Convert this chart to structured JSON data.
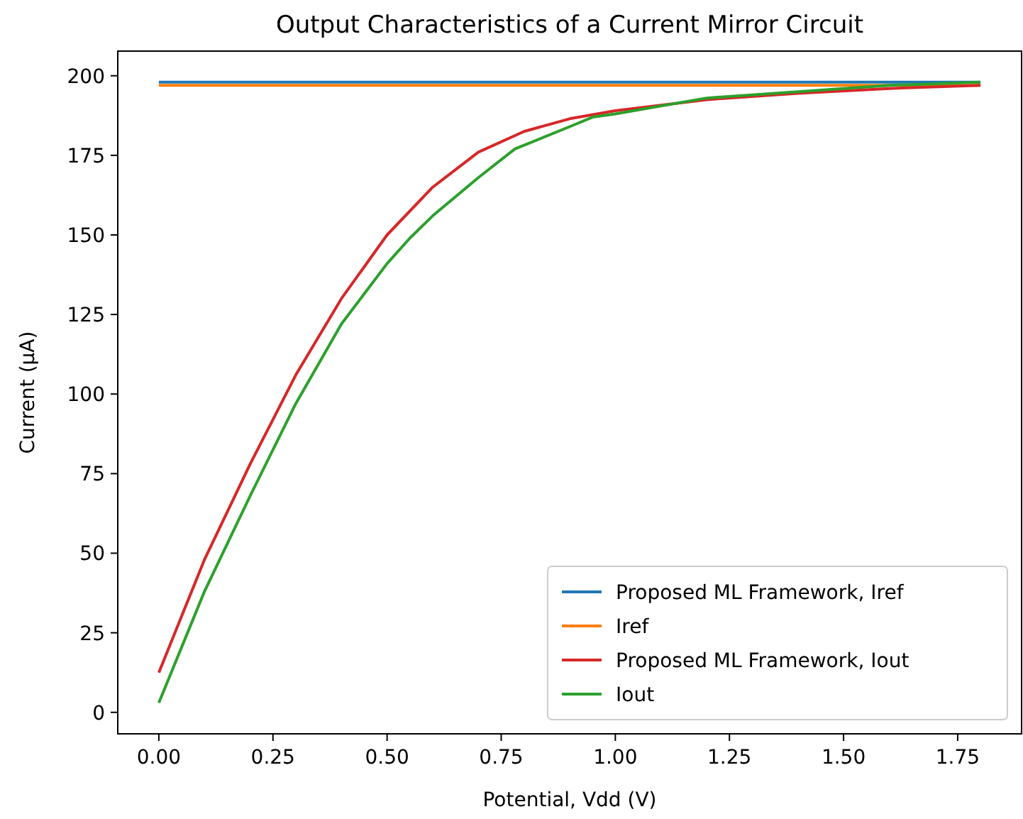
{
  "chart_data": {
    "type": "line",
    "title": "Output Characteristics of a Current Mirror Circuit",
    "xlabel": "Potential, Vdd (V)",
    "ylabel": "Current (µA)",
    "xlim": [
      -0.09,
      1.89
    ],
    "xticks": [
      {
        "value": 0,
        "label": "0.00"
      },
      {
        "value": 0.25,
        "label": "0.25"
      },
      {
        "value": 0.5,
        "label": "0.50"
      },
      {
        "value": 0.75,
        "label": "0.75"
      },
      {
        "value": 1,
        "label": "1.00"
      },
      {
        "value": 1.25,
        "label": "1.25"
      },
      {
        "value": 1.5,
        "label": "1.50"
      },
      {
        "value": 1.75,
        "label": "1.75"
      }
    ],
    "ylim": [
      -6.75,
      207.75
    ],
    "yticks": [
      0,
      25,
      50,
      75,
      100,
      125,
      150,
      175,
      200
    ],
    "grid": false,
    "legend": "bottom right",
    "marker": "none",
    "line_style": "solid",
    "series": [
      {
        "name": "Proposed ML Framework, Iref",
        "color": "#1f77b4",
        "x": [
          0,
          1.8
        ],
        "values": [
          198,
          198
        ]
      },
      {
        "name": "Iref",
        "color": "#ff7f0e",
        "x": [
          0,
          1.8
        ],
        "values": [
          197,
          197
        ]
      },
      {
        "name": "Proposed ML Framework, Iout",
        "color": "#d62728",
        "x": [
          0,
          0.1,
          0.2,
          0.3,
          0.4,
          0.5,
          0.6,
          0.7,
          0.8,
          0.9,
          1.0,
          1.2,
          1.4,
          1.6,
          1.8
        ],
        "values": [
          12.5,
          48,
          78,
          106,
          130,
          150,
          165,
          176,
          182.5,
          186.5,
          189,
          192.5,
          194.5,
          196,
          197
        ]
      },
      {
        "name": "Iout",
        "color": "#2ca02c",
        "x": [
          0,
          0.1,
          0.2,
          0.3,
          0.4,
          0.5,
          0.55,
          0.6,
          0.7,
          0.78,
          0.9,
          0.95,
          1.0,
          1.2,
          1.4,
          1.6,
          1.8
        ],
        "values": [
          3,
          38,
          68,
          97,
          122,
          141,
          149,
          156,
          168,
          177,
          184,
          187,
          188,
          193,
          195,
          197,
          198
        ]
      }
    ]
  }
}
